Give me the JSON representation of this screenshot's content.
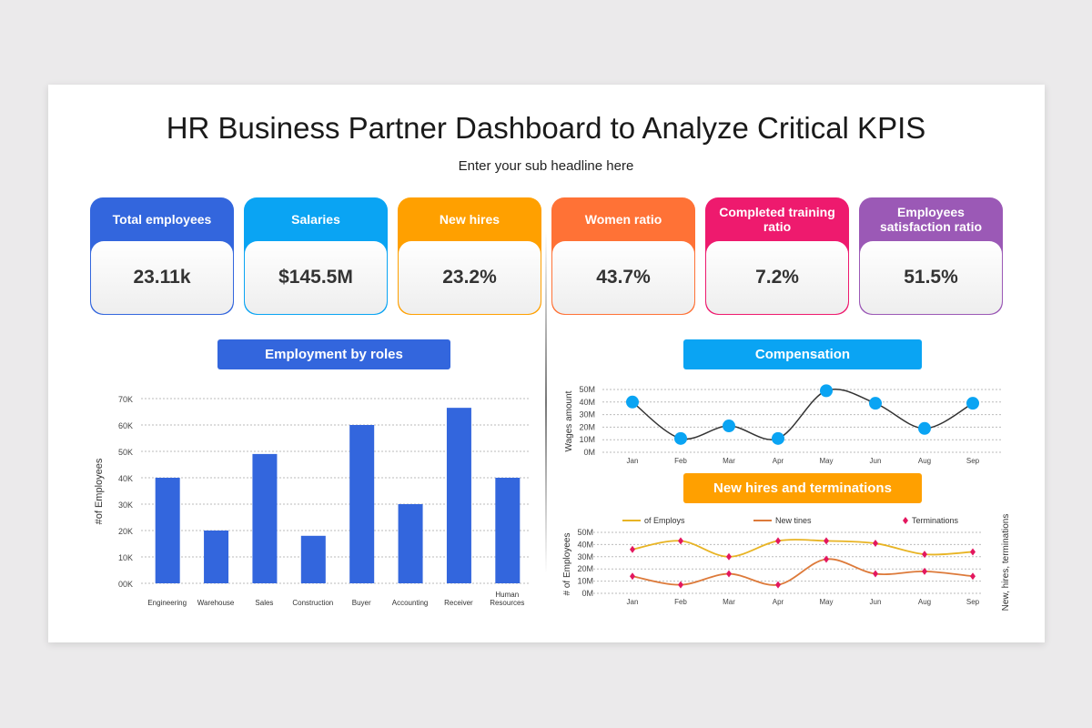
{
  "title": "HR Business Partner Dashboard to Analyze Critical KPIS",
  "subtitle": "Enter your sub headline here",
  "kpis": [
    {
      "label": "Total employees",
      "value": "23.11k",
      "color": "#3366dd"
    },
    {
      "label": "Salaries",
      "value": "$145.5M",
      "color": "#0aa4f3"
    },
    {
      "label": "New hires",
      "value": "23.2%",
      "color": "#ffa000"
    },
    {
      "label": "Women ratio",
      "value": "43.7%",
      "color": "#ff7236"
    },
    {
      "label": "Completed training ratio",
      "value": "7.2%",
      "color": "#ee1a6e"
    },
    {
      "label": "Employees satisfaction ratio",
      "value": "51.5%",
      "color": "#9b59b6"
    }
  ],
  "sections": {
    "roles": "Employment by roles",
    "comp": "Compensation",
    "hires": "New hires and terminations"
  },
  "chart_data": [
    {
      "type": "bar",
      "title": "Employment by roles",
      "ylabel": "#of Employees",
      "categories": [
        "Engineering",
        "Warehouse",
        "Sales",
        "Construction",
        "Buyer",
        "Accounting",
        "Receiver",
        "Human Resources"
      ],
      "values": [
        40000,
        20000,
        49000,
        18000,
        60000,
        30000,
        66500,
        40000
      ],
      "ylim": [
        0,
        70000
      ],
      "yticks": [
        "00K",
        "10K",
        "20K",
        "30K",
        "40K",
        "50K",
        "60K",
        "70K"
      ],
      "grid": true,
      "color": "#3366dd"
    },
    {
      "type": "line",
      "title": "Compensation",
      "ylabel": "Wages amount",
      "categories": [
        "Jan",
        "Feb",
        "Mar",
        "Apr",
        "May",
        "Jun",
        "Aug",
        "Sep"
      ],
      "values": [
        40,
        11,
        21,
        11,
        49,
        39,
        19,
        39
      ],
      "ylim": [
        0,
        50
      ],
      "yticks": [
        "0M",
        "10M",
        "20M",
        "30M",
        "40M",
        "50M"
      ],
      "grid": true,
      "color": "#0aa4f3"
    },
    {
      "type": "line",
      "title": "New hires and terminations",
      "ylabel": "# of Employees",
      "y2label": "New, hires, terminations",
      "categories": [
        "Jan",
        "Feb",
        "Mar",
        "Apr",
        "May",
        "Jun",
        "Aug",
        "Sep"
      ],
      "ylim": [
        0,
        50
      ],
      "yticks": [
        "0M",
        "10M",
        "20M",
        "30M",
        "40M",
        "50M"
      ],
      "grid": true,
      "legend": "top",
      "series": [
        {
          "name": "of Employs",
          "values": [
            36,
            43,
            30,
            43,
            43,
            41,
            32,
            34
          ],
          "color": "#e8b424"
        },
        {
          "name": "New tines",
          "values": [
            14,
            7,
            16,
            7,
            28,
            16,
            18,
            14
          ],
          "color": "#dd7a3a"
        }
      ],
      "markers": {
        "name": "Terminations",
        "color": "#e3175f"
      }
    }
  ]
}
